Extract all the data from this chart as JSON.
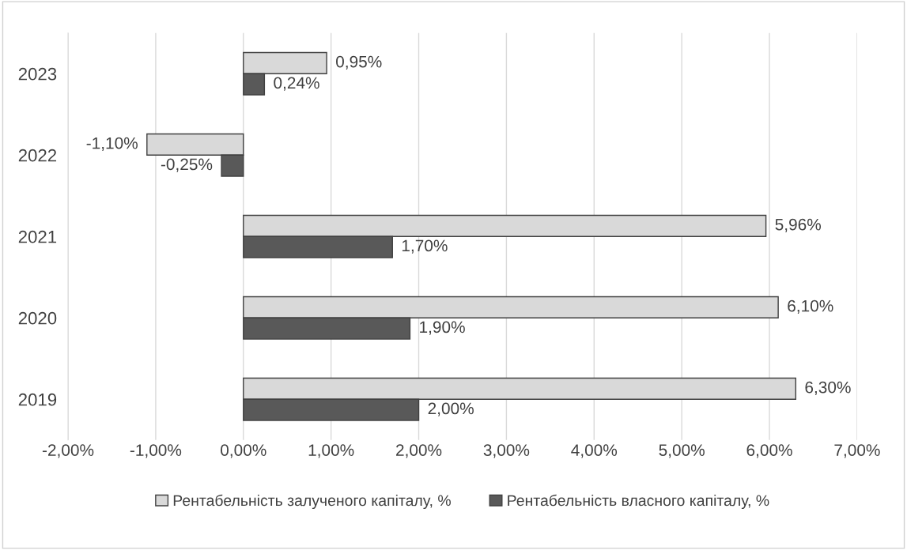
{
  "chart_data": {
    "type": "bar",
    "orientation": "horizontal",
    "categories": [
      "2023",
      "2022",
      "2021",
      "2020",
      "2019"
    ],
    "series": [
      {
        "name": "Рентабельність залученого капіталу, %",
        "color": "#d9d9d9",
        "values": [
          0.95,
          -1.1,
          5.96,
          6.1,
          6.3
        ],
        "value_labels": [
          "0,95%",
          "-1,10%",
          "5,96%",
          "6,10%",
          "6,30%"
        ]
      },
      {
        "name": "Рентабельність власного капіталу, %",
        "color": "#595959",
        "values": [
          0.24,
          -0.25,
          1.7,
          1.9,
          2.0
        ],
        "value_labels": [
          "0,24%",
          "-0,25%",
          "1,70%",
          "1,90%",
          "2,00%"
        ]
      }
    ],
    "xlim": [
      -2,
      7
    ],
    "xticks": [
      {
        "value": -2,
        "label": "-2,00%"
      },
      {
        "value": -1,
        "label": "-1,00%"
      },
      {
        "value": 0,
        "label": "0,00%"
      },
      {
        "value": 1,
        "label": "1,00%"
      },
      {
        "value": 2,
        "label": "2,00%"
      },
      {
        "value": 3,
        "label": "3,00%"
      },
      {
        "value": 4,
        "label": "4,00%"
      },
      {
        "value": 5,
        "label": "5,00%"
      },
      {
        "value": 6,
        "label": "6,00%"
      },
      {
        "value": 7,
        "label": "7,00%"
      }
    ],
    "grid": "x",
    "legend": "bottom"
  }
}
